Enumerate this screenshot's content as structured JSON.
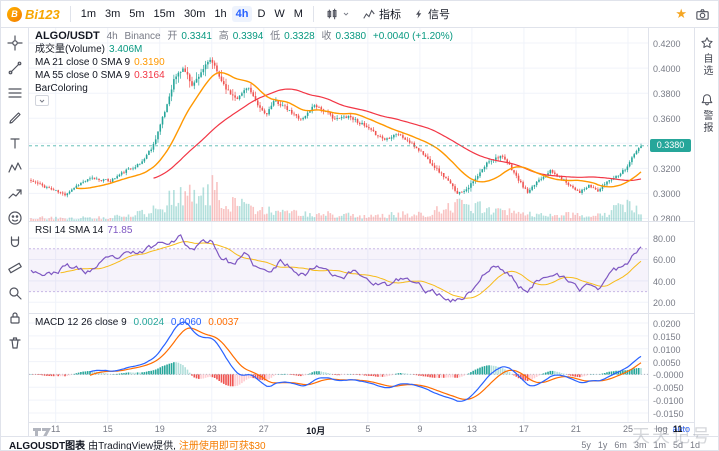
{
  "topbar": {
    "logo": "Bi123",
    "logo_badge": "B",
    "timeframes": [
      "1m",
      "3m",
      "5m",
      "15m",
      "30m",
      "1h",
      "4h",
      "D",
      "W",
      "M"
    ],
    "active_timeframe": "4h",
    "indicators_label": "指标",
    "signal_label": "信号"
  },
  "left_toolbar": [
    "crosshair",
    "trend-line",
    "fibonacci",
    "brush",
    "text",
    "xabcd-pattern",
    "forecast",
    "emoji",
    "magnet",
    "measure",
    "zoom",
    "lock",
    "trash"
  ],
  "right_toolbar": {
    "watchlist": "自选",
    "alerts": "警报"
  },
  "legend": {
    "symbol": "ALGO/USDT",
    "interval": "4h",
    "exchange": "Binance",
    "o_label": "开",
    "o": "0.3341",
    "h_label": "高",
    "h": "0.3394",
    "l_label": "低",
    "l": "0.3328",
    "c_label": "收",
    "c": "0.3380",
    "change": "+0.0040 (+1.20%)",
    "vol_label": "成交量(Volume)",
    "vol": "3.406M",
    "ma21_label": "MA 21 close 0 SMA 9",
    "ma21_value": "0.3190",
    "ma55_label": "MA 55 close 0 SMA 9",
    "ma55_value": "0.3164",
    "bar_label": "BarColoring"
  },
  "rsi": {
    "label": "RSI 14 SMA 14",
    "value": "71.85"
  },
  "macd": {
    "label": "MACD 12 26 close 9",
    "v1": "0.0024",
    "v2": "0.0060",
    "v3": "0.0037"
  },
  "price_axis": {
    "badge": "0.3380"
  },
  "time_axis": [
    {
      "label": "11",
      "t": 0.04
    },
    {
      "label": "15",
      "t": 0.118
    },
    {
      "label": "19",
      "t": 0.196
    },
    {
      "label": "23",
      "t": 0.274
    },
    {
      "label": "27",
      "t": 0.352
    },
    {
      "label": "10月",
      "t": 0.43
    },
    {
      "label": "5",
      "t": 0.508
    },
    {
      "label": "9",
      "t": 0.586
    },
    {
      "label": "13",
      "t": 0.664
    },
    {
      "label": "17",
      "t": 0.742
    },
    {
      "label": "21",
      "t": 0.82
    },
    {
      "label": "25",
      "t": 0.898
    },
    {
      "label": "11月",
      "t": 0.976
    }
  ],
  "footer": {
    "attr_bold": "ALGOUSDT图表",
    "attr_mid": "由TradingView提供, ",
    "attr_link": "注册使用即可获$30",
    "ranges": [
      "5y",
      "1y",
      "6m",
      "3m",
      "1m",
      "5d",
      "1d"
    ],
    "log": "log",
    "auto": "auto"
  },
  "watermark": {
    "text": "天天记号"
  },
  "colors": {
    "up": "#26a69a",
    "down": "#ef5350",
    "text_up": "#089981",
    "ma21": "#ff9800",
    "ma55": "#f23645",
    "rsi": "#7e57c2",
    "rsi_sma": "#f7b500",
    "macd": "#2962ff",
    "signal": "#ff6d00",
    "hist_up": "#26a69a",
    "hist_up_weak": "#b2dfdb",
    "hist_dn": "#ef5350",
    "hist_dn_weak": "#ffcdd2",
    "accent": "#2962ff",
    "brand": "#f7a600",
    "grid": "#f0f3fa",
    "border": "#e0e3eb",
    "axis_text": "#787b86",
    "badge": "#26a69a"
  },
  "chart_data": {
    "type": "candlestick",
    "symbol": "ALGO/USDT",
    "interval": "4h",
    "exchange": "Binance",
    "last_price": 0.338,
    "n_candles": 270,
    "price_min": 0.278,
    "price_max": 0.432,
    "y_ticks": [
      0.42,
      0.4,
      0.38,
      0.36,
      0.34,
      0.32,
      0.3,
      0.28
    ],
    "close_anchors": [
      [
        0,
        0.31
      ],
      [
        0.03,
        0.304
      ],
      [
        0.055,
        0.299
      ],
      [
        0.08,
        0.308
      ],
      [
        0.1,
        0.312
      ],
      [
        0.13,
        0.31
      ],
      [
        0.155,
        0.318
      ],
      [
        0.18,
        0.324
      ],
      [
        0.2,
        0.338
      ],
      [
        0.22,
        0.366
      ],
      [
        0.235,
        0.392
      ],
      [
        0.25,
        0.4
      ],
      [
        0.265,
        0.386
      ],
      [
        0.28,
        0.398
      ],
      [
        0.295,
        0.407
      ],
      [
        0.31,
        0.392
      ],
      [
        0.325,
        0.38
      ],
      [
        0.34,
        0.376
      ],
      [
        0.355,
        0.386
      ],
      [
        0.37,
        0.371
      ],
      [
        0.385,
        0.363
      ],
      [
        0.4,
        0.374
      ],
      [
        0.415,
        0.369
      ],
      [
        0.43,
        0.363
      ],
      [
        0.445,
        0.359
      ],
      [
        0.465,
        0.371
      ],
      [
        0.48,
        0.366
      ],
      [
        0.5,
        0.359
      ],
      [
        0.52,
        0.362
      ],
      [
        0.54,
        0.356
      ],
      [
        0.56,
        0.349
      ],
      [
        0.58,
        0.343
      ],
      [
        0.6,
        0.348
      ],
      [
        0.62,
        0.341
      ],
      [
        0.64,
        0.333
      ],
      [
        0.66,
        0.322
      ],
      [
        0.68,
        0.312
      ],
      [
        0.7,
        0.3
      ],
      [
        0.715,
        0.304
      ],
      [
        0.73,
        0.312
      ],
      [
        0.75,
        0.326
      ],
      [
        0.77,
        0.33
      ],
      [
        0.785,
        0.322
      ],
      [
        0.8,
        0.31
      ],
      [
        0.815,
        0.3
      ],
      [
        0.83,
        0.31
      ],
      [
        0.85,
        0.318
      ],
      [
        0.87,
        0.312
      ],
      [
        0.885,
        0.306
      ],
      [
        0.9,
        0.301
      ],
      [
        0.915,
        0.306
      ],
      [
        0.93,
        0.302
      ],
      [
        0.945,
        0.31
      ],
      [
        0.96,
        0.314
      ],
      [
        0.975,
        0.32
      ],
      [
        0.99,
        0.332
      ],
      [
        1,
        0.338
      ]
    ],
    "wick_anchors": [
      [
        0,
        0.006
      ],
      [
        0.18,
        0.006
      ],
      [
        0.22,
        0.013
      ],
      [
        0.3,
        0.015
      ],
      [
        0.36,
        0.01
      ],
      [
        0.45,
        0.007
      ],
      [
        0.6,
        0.006
      ],
      [
        0.68,
        0.009
      ],
      [
        0.73,
        0.01
      ],
      [
        0.78,
        0.007
      ],
      [
        0.9,
        0.006
      ],
      [
        1,
        0.007
      ]
    ],
    "volume_anchors": [
      [
        0,
        0.1
      ],
      [
        0.05,
        0.08
      ],
      [
        0.1,
        0.1
      ],
      [
        0.15,
        0.14
      ],
      [
        0.19,
        0.25
      ],
      [
        0.22,
        0.55
      ],
      [
        0.25,
        0.75
      ],
      [
        0.28,
        0.65
      ],
      [
        0.3,
        1.0
      ],
      [
        0.33,
        0.55
      ],
      [
        0.36,
        0.4
      ],
      [
        0.4,
        0.28
      ],
      [
        0.45,
        0.22
      ],
      [
        0.5,
        0.18
      ],
      [
        0.55,
        0.15
      ],
      [
        0.6,
        0.18
      ],
      [
        0.65,
        0.22
      ],
      [
        0.69,
        0.4
      ],
      [
        0.72,
        0.5
      ],
      [
        0.75,
        0.3
      ],
      [
        0.8,
        0.22
      ],
      [
        0.85,
        0.18
      ],
      [
        0.9,
        0.18
      ],
      [
        0.94,
        0.22
      ],
      [
        0.98,
        0.45
      ],
      [
        1,
        0.4
      ]
    ],
    "rsi": {
      "min": 10,
      "max": 95,
      "band": [
        30,
        70
      ],
      "ticks": [
        80,
        60,
        40,
        20
      ],
      "last": 71.85,
      "anchors": [
        [
          0,
          52
        ],
        [
          0.03,
          46
        ],
        [
          0.06,
          54
        ],
        [
          0.09,
          48
        ],
        [
          0.12,
          57
        ],
        [
          0.15,
          62
        ],
        [
          0.18,
          66
        ],
        [
          0.2,
          72
        ],
        [
          0.22,
          78
        ],
        [
          0.245,
          82
        ],
        [
          0.26,
          70
        ],
        [
          0.28,
          75
        ],
        [
          0.295,
          79
        ],
        [
          0.31,
          64
        ],
        [
          0.33,
          56
        ],
        [
          0.35,
          63
        ],
        [
          0.37,
          52
        ],
        [
          0.39,
          46
        ],
        [
          0.41,
          58
        ],
        [
          0.43,
          52
        ],
        [
          0.45,
          47
        ],
        [
          0.47,
          56
        ],
        [
          0.49,
          50
        ],
        [
          0.51,
          44
        ],
        [
          0.53,
          49
        ],
        [
          0.55,
          43
        ],
        [
          0.57,
          38
        ],
        [
          0.59,
          35
        ],
        [
          0.61,
          42
        ],
        [
          0.63,
          37
        ],
        [
          0.65,
          31
        ],
        [
          0.67,
          27
        ],
        [
          0.7,
          22
        ],
        [
          0.72,
          30
        ],
        [
          0.74,
          45
        ],
        [
          0.76,
          54
        ],
        [
          0.78,
          48
        ],
        [
          0.8,
          36
        ],
        [
          0.815,
          28
        ],
        [
          0.83,
          40
        ],
        [
          0.85,
          50
        ],
        [
          0.87,
          43
        ],
        [
          0.885,
          36
        ],
        [
          0.9,
          31
        ],
        [
          0.915,
          38
        ],
        [
          0.93,
          33
        ],
        [
          0.945,
          44
        ],
        [
          0.96,
          50
        ],
        [
          0.975,
          57
        ],
        [
          0.99,
          66
        ],
        [
          1,
          71.85
        ]
      ]
    },
    "macd": {
      "min": -0.0185,
      "max": 0.0235,
      "ticks": [
        0.02,
        0.015,
        0.01,
        0.005,
        0,
        -0.005,
        -0.01,
        -0.015
      ]
    }
  }
}
